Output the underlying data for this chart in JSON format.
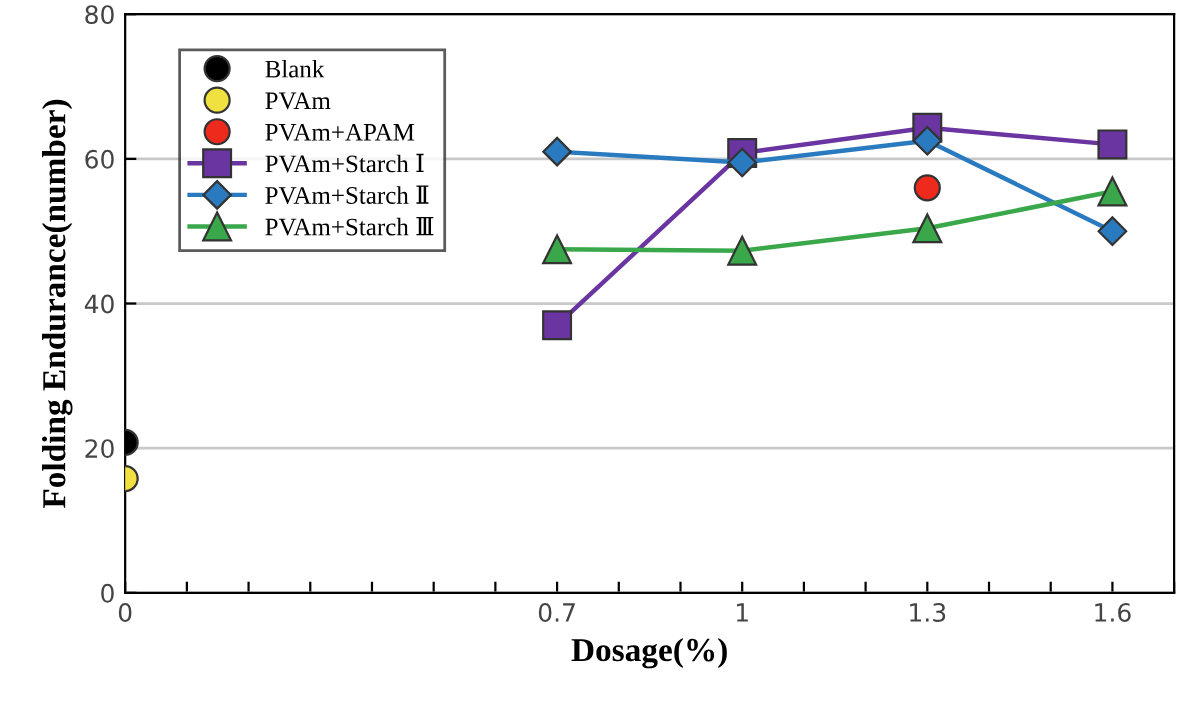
{
  "chart_data": {
    "type": "line",
    "xlabel": "Dosage(%)",
    "ylabel": "Folding Endurance(number)",
    "xlim": [
      0,
      1.7
    ],
    "ylim": [
      0,
      80
    ],
    "xticks": [
      0,
      {
        "value": 0.1,
        "label": null
      },
      {
        "value": 0.2,
        "label": null
      },
      {
        "value": 0.3,
        "label": null
      },
      {
        "value": 0.4,
        "label": null
      },
      {
        "value": 0.5,
        "label": null
      },
      {
        "value": 0.6,
        "label": null
      },
      0.7,
      {
        "value": 0.8,
        "label": null
      },
      {
        "value": 0.9,
        "label": null
      },
      1,
      {
        "value": 1.1,
        "label": null
      },
      {
        "value": 1.2,
        "label": null
      },
      1.3,
      {
        "value": 1.4,
        "label": null
      },
      {
        "value": 1.5,
        "label": null
      },
      1.6,
      {
        "value": 1.7,
        "label": null
      }
    ],
    "yticks": [
      0,
      20,
      40,
      60,
      80
    ],
    "grid": "y",
    "legend": "top left",
    "series": [
      {
        "name": "Blank",
        "type": "scatter",
        "marker": "circle",
        "color": "#000000",
        "x": [
          0
        ],
        "values": [
          20.8
        ]
      },
      {
        "name": "PVAm",
        "type": "scatter",
        "marker": "circle",
        "color": "#f0e040",
        "x": [
          0
        ],
        "values": [
          15.8
        ]
      },
      {
        "name": "PVAm+APAM",
        "type": "scatter",
        "marker": "circle",
        "color": "#ee2a1c",
        "x": [
          1.3
        ],
        "values": [
          56
        ]
      },
      {
        "name": "PVAm+Starch Ⅰ",
        "marker": "square",
        "color": "#6a35a0",
        "x": [
          0.7,
          1,
          1.3,
          1.6
        ],
        "values": [
          37,
          60.8,
          64.3,
          62
        ]
      },
      {
        "name": "PVAm+Starch Ⅱ",
        "marker": "diamond",
        "color": "#2a7ac0",
        "x": [
          0.7,
          1,
          1.3,
          1.6
        ],
        "values": [
          61,
          59.5,
          62.5,
          50
        ]
      },
      {
        "name": "PVAm+Starch Ⅲ",
        "marker": "triangle",
        "color": "#3aa84a",
        "x": [
          0.7,
          1,
          1.3,
          1.6
        ],
        "values": [
          47.5,
          47.3,
          50.4,
          55.5
        ]
      }
    ]
  }
}
